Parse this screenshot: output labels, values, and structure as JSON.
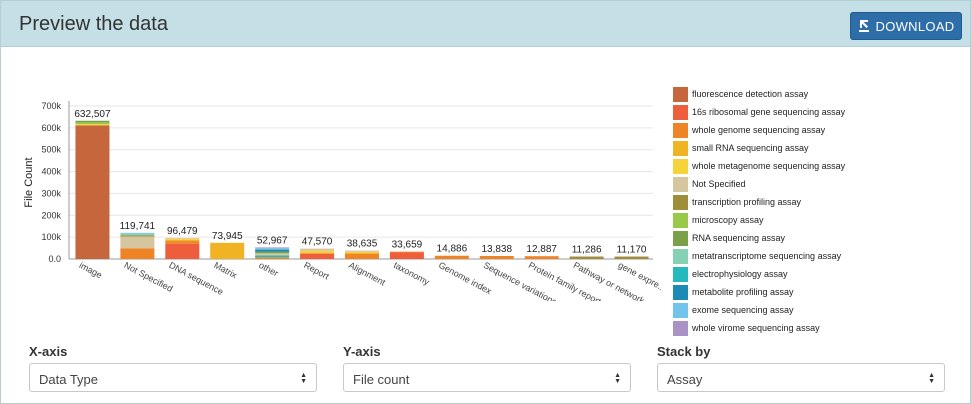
{
  "header": {
    "title": "Preview the data",
    "download_label": "DOWNLOAD"
  },
  "legend": [
    {
      "name": "fluorescence detection assay",
      "color": "#c6663c"
    },
    {
      "name": "16s ribosomal gene sequencing assay",
      "color": "#ee5d3c"
    },
    {
      "name": "whole genome sequencing assay",
      "color": "#ef8427"
    },
    {
      "name": "small RNA sequencing assay",
      "color": "#f0b323"
    },
    {
      "name": "whole metagenome sequencing assay",
      "color": "#f5d33a"
    },
    {
      "name": "Not Specified",
      "color": "#d6c6a0"
    },
    {
      "name": "transcription profiling assay",
      "color": "#a08d3a"
    },
    {
      "name": "microscopy assay",
      "color": "#99c94a"
    },
    {
      "name": "RNA sequencing assay",
      "color": "#7aa04a"
    },
    {
      "name": "metatranscriptome sequencing assay",
      "color": "#86d0b3"
    },
    {
      "name": "electrophysiology assay",
      "color": "#25b8bd"
    },
    {
      "name": "metabolite profiling assay",
      "color": "#1b8bb5"
    },
    {
      "name": "exome sequencing assay",
      "color": "#74c3ea"
    },
    {
      "name": "whole virome sequencing assay",
      "color": "#a892c6"
    }
  ],
  "chart_data": {
    "type": "bar",
    "stacked": true,
    "ylabel": "File Count",
    "ylim": [
      0,
      700000
    ],
    "yticks": [
      "0.0",
      "100k",
      "200k",
      "300k",
      "400k",
      "500k",
      "600k",
      "700k"
    ],
    "categories": [
      "image",
      "Not Specified",
      "DNA sequence",
      "Matrix",
      "other",
      "Report",
      "Alignment",
      "taxonomy",
      "Genome index",
      "Sequence variations",
      "Protein family report",
      "Pathway or network",
      "gene expre..."
    ],
    "totals": [
      632507,
      119741,
      96479,
      73945,
      52967,
      47570,
      38635,
      33659,
      14886,
      13838,
      12887,
      11286,
      11170
    ],
    "total_labels": [
      "632,507",
      "119,741",
      "96,479",
      "73,945",
      "52,967",
      "47,570",
      "38,635",
      "33,659",
      "14,886",
      "13,838",
      "12,887",
      "11,286",
      "11,170"
    ],
    "stacks": [
      [
        {
          "s": 0,
          "v": 611000
        },
        {
          "s": 4,
          "v": 6000
        },
        {
          "s": 7,
          "v": 8000
        },
        {
          "s": 8,
          "v": 7507
        }
      ],
      [
        {
          "s": 2,
          "v": 48000
        },
        {
          "s": 5,
          "v": 55000
        },
        {
          "s": 6,
          "v": 5000
        },
        {
          "s": 9,
          "v": 8000
        },
        {
          "s": 12,
          "v": 3741
        }
      ],
      [
        {
          "s": 1,
          "v": 70000
        },
        {
          "s": 2,
          "v": 12000
        },
        {
          "s": 3,
          "v": 6000
        },
        {
          "s": 4,
          "v": 5000
        },
        {
          "s": 5,
          "v": 3479
        }
      ],
      [
        {
          "s": 3,
          "v": 73945
        }
      ],
      [
        {
          "s": 2,
          "v": 8000
        },
        {
          "s": 10,
          "v": 9000
        },
        {
          "s": 5,
          "v": 9000
        },
        {
          "s": 8,
          "v": 8000
        },
        {
          "s": 11,
          "v": 9000
        },
        {
          "s": 12,
          "v": 6000
        },
        {
          "s": 13,
          "v": 3967
        }
      ],
      [
        {
          "s": 1,
          "v": 25000
        },
        {
          "s": 4,
          "v": 12000
        },
        {
          "s": 5,
          "v": 10570
        }
      ],
      [
        {
          "s": 2,
          "v": 25000
        },
        {
          "s": 4,
          "v": 8000
        },
        {
          "s": 5,
          "v": 5635
        }
      ],
      [
        {
          "s": 1,
          "v": 30000
        },
        {
          "s": 2,
          "v": 3659
        }
      ],
      [
        {
          "s": 2,
          "v": 14886
        }
      ],
      [
        {
          "s": 2,
          "v": 13838
        }
      ],
      [
        {
          "s": 2,
          "v": 12887
        }
      ],
      [
        {
          "s": 6,
          "v": 11286
        }
      ],
      [
        {
          "s": 6,
          "v": 11170
        }
      ]
    ]
  },
  "controls": {
    "x_axis": {
      "label": "X-axis",
      "value": "Data Type"
    },
    "y_axis": {
      "label": "Y-axis",
      "value": "File count"
    },
    "stack_by": {
      "label": "Stack by",
      "value": "Assay"
    }
  }
}
